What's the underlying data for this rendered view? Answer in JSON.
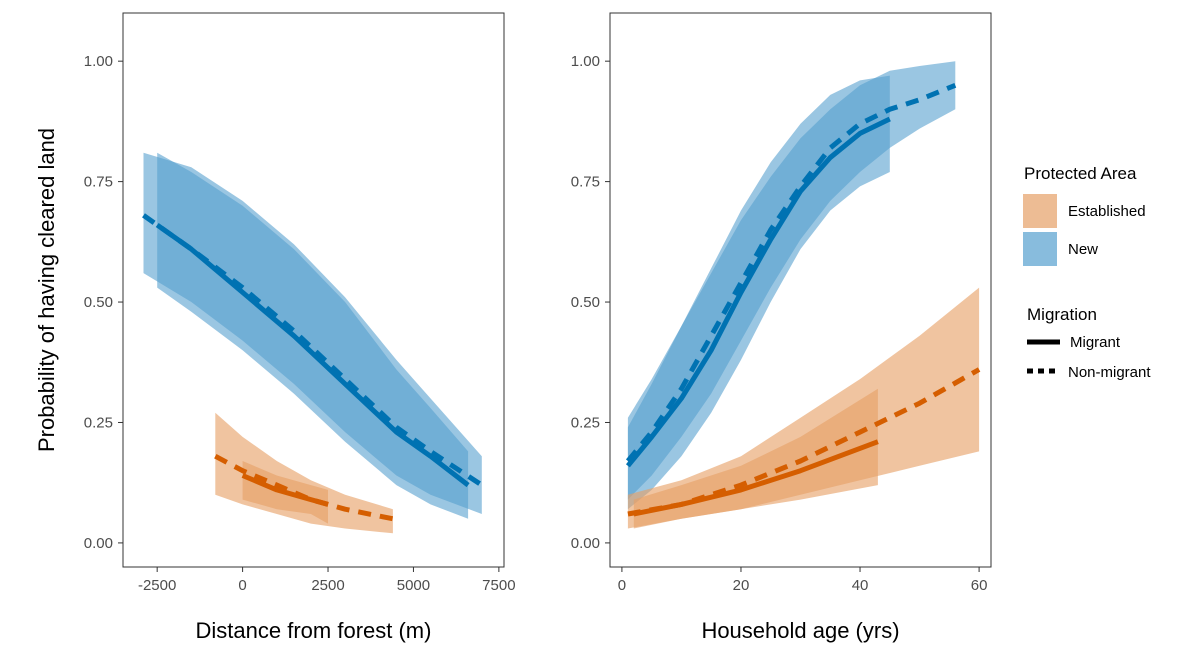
{
  "y_axis_label": "Probability of having cleared land",
  "colors": {
    "established_line": "#D55E00",
    "established_band": "#E69F66",
    "new_line": "#0072B2",
    "new_band": "#56A0CF"
  },
  "legend": {
    "fill_title": "Protected Area",
    "fill_items": [
      "Established",
      "New"
    ],
    "linetype_title": "Migration",
    "linetype_items": [
      "Migrant",
      "Non-migrant"
    ]
  },
  "chart_data": [
    {
      "type": "line",
      "xlabel": "Distance from forest (m)",
      "ylabel": "Probability of having cleared land",
      "xlim": [
        -3500,
        7650
      ],
      "ylim": [
        -0.05,
        1.1
      ],
      "xticks": [
        -2500,
        0,
        2500,
        5000,
        7500
      ],
      "xtick_labels": [
        "-2500",
        "0",
        "2500",
        "5000",
        "7500"
      ],
      "yticks": [
        0,
        0.25,
        0.5,
        0.75,
        1.0
      ],
      "ytick_labels": [
        "0.00",
        "0.25",
        "0.50",
        "0.75",
        "1.00"
      ],
      "grid": false,
      "series": [
        {
          "name": "Non-migrant",
          "group": "New",
          "x": [
            -2900,
            -1500,
            0,
            1500,
            3000,
            4500,
            5500,
            7000
          ],
          "y": [
            0.68,
            0.61,
            0.53,
            0.44,
            0.34,
            0.24,
            0.19,
            0.12
          ],
          "lower": [
            0.56,
            0.5,
            0.42,
            0.33,
            0.23,
            0.14,
            0.1,
            0.06
          ],
          "upper": [
            0.81,
            0.78,
            0.71,
            0.62,
            0.51,
            0.38,
            0.3,
            0.18
          ]
        },
        {
          "name": "Migrant",
          "group": "New",
          "x": [
            -2500,
            -1500,
            0,
            1500,
            3000,
            4500,
            5500,
            6600
          ],
          "y": [
            0.66,
            0.61,
            0.52,
            0.43,
            0.33,
            0.23,
            0.18,
            0.12
          ],
          "lower": [
            0.53,
            0.48,
            0.4,
            0.31,
            0.21,
            0.12,
            0.08,
            0.05
          ],
          "upper": [
            0.81,
            0.77,
            0.7,
            0.61,
            0.5,
            0.36,
            0.28,
            0.19
          ]
        },
        {
          "name": "Non-migrant",
          "group": "Established",
          "x": [
            -800,
            0,
            1000,
            2000,
            3000,
            4400
          ],
          "y": [
            0.18,
            0.15,
            0.12,
            0.09,
            0.07,
            0.05
          ],
          "lower": [
            0.1,
            0.08,
            0.06,
            0.04,
            0.03,
            0.02
          ],
          "upper": [
            0.27,
            0.22,
            0.17,
            0.13,
            0.1,
            0.07
          ]
        },
        {
          "name": "Migrant",
          "group": "Established",
          "x": [
            0,
            1000,
            2000,
            2500
          ],
          "y": [
            0.14,
            0.11,
            0.09,
            0.08
          ],
          "lower": [
            0.09,
            0.07,
            0.06,
            0.04
          ],
          "upper": [
            0.17,
            0.14,
            0.12,
            0.11
          ]
        }
      ]
    },
    {
      "type": "line",
      "xlabel": "Household age (yrs)",
      "ylabel": "Probability of having cleared land",
      "xlim": [
        -2,
        62
      ],
      "ylim": [
        -0.05,
        1.1
      ],
      "xticks": [
        0,
        20,
        40,
        60
      ],
      "xtick_labels": [
        "0",
        "20",
        "40",
        "60"
      ],
      "yticks": [
        0,
        0.25,
        0.5,
        0.75,
        1.0
      ],
      "ytick_labels": [
        "0.00",
        "0.25",
        "0.50",
        "0.75",
        "1.00"
      ],
      "grid": false,
      "series": [
        {
          "name": "Non-migrant",
          "group": "New",
          "x": [
            1,
            5,
            10,
            15,
            20,
            25,
            30,
            35,
            40,
            45,
            50,
            56
          ],
          "y": [
            0.17,
            0.23,
            0.32,
            0.43,
            0.54,
            0.65,
            0.74,
            0.82,
            0.87,
            0.9,
            0.92,
            0.95
          ],
          "lower": [
            0.09,
            0.14,
            0.22,
            0.31,
            0.42,
            0.53,
            0.63,
            0.71,
            0.77,
            0.82,
            0.86,
            0.9
          ],
          "upper": [
            0.26,
            0.34,
            0.45,
            0.56,
            0.67,
            0.76,
            0.84,
            0.9,
            0.95,
            0.98,
            0.99,
            1.0
          ]
        },
        {
          "name": "Migrant",
          "group": "New",
          "x": [
            1,
            5,
            10,
            15,
            20,
            25,
            30,
            35,
            40,
            45
          ],
          "y": [
            0.16,
            0.22,
            0.3,
            0.4,
            0.52,
            0.63,
            0.73,
            0.8,
            0.85,
            0.88
          ],
          "lower": [
            0.07,
            0.11,
            0.18,
            0.27,
            0.38,
            0.5,
            0.61,
            0.69,
            0.74,
            0.77
          ],
          "upper": [
            0.24,
            0.33,
            0.45,
            0.57,
            0.69,
            0.79,
            0.87,
            0.93,
            0.96,
            0.97
          ]
        },
        {
          "name": "Non-migrant",
          "group": "Established",
          "x": [
            1,
            10,
            20,
            30,
            40,
            50,
            60
          ],
          "y": [
            0.06,
            0.08,
            0.12,
            0.17,
            0.23,
            0.29,
            0.36
          ],
          "lower": [
            0.03,
            0.05,
            0.07,
            0.1,
            0.13,
            0.16,
            0.19
          ],
          "upper": [
            0.1,
            0.13,
            0.18,
            0.26,
            0.34,
            0.43,
            0.53
          ]
        },
        {
          "name": "Migrant",
          "group": "Established",
          "x": [
            2,
            10,
            20,
            30,
            43
          ],
          "y": [
            0.06,
            0.08,
            0.11,
            0.15,
            0.21
          ],
          "lower": [
            0.03,
            0.05,
            0.07,
            0.09,
            0.12
          ],
          "upper": [
            0.09,
            0.12,
            0.16,
            0.22,
            0.32
          ]
        }
      ]
    }
  ]
}
